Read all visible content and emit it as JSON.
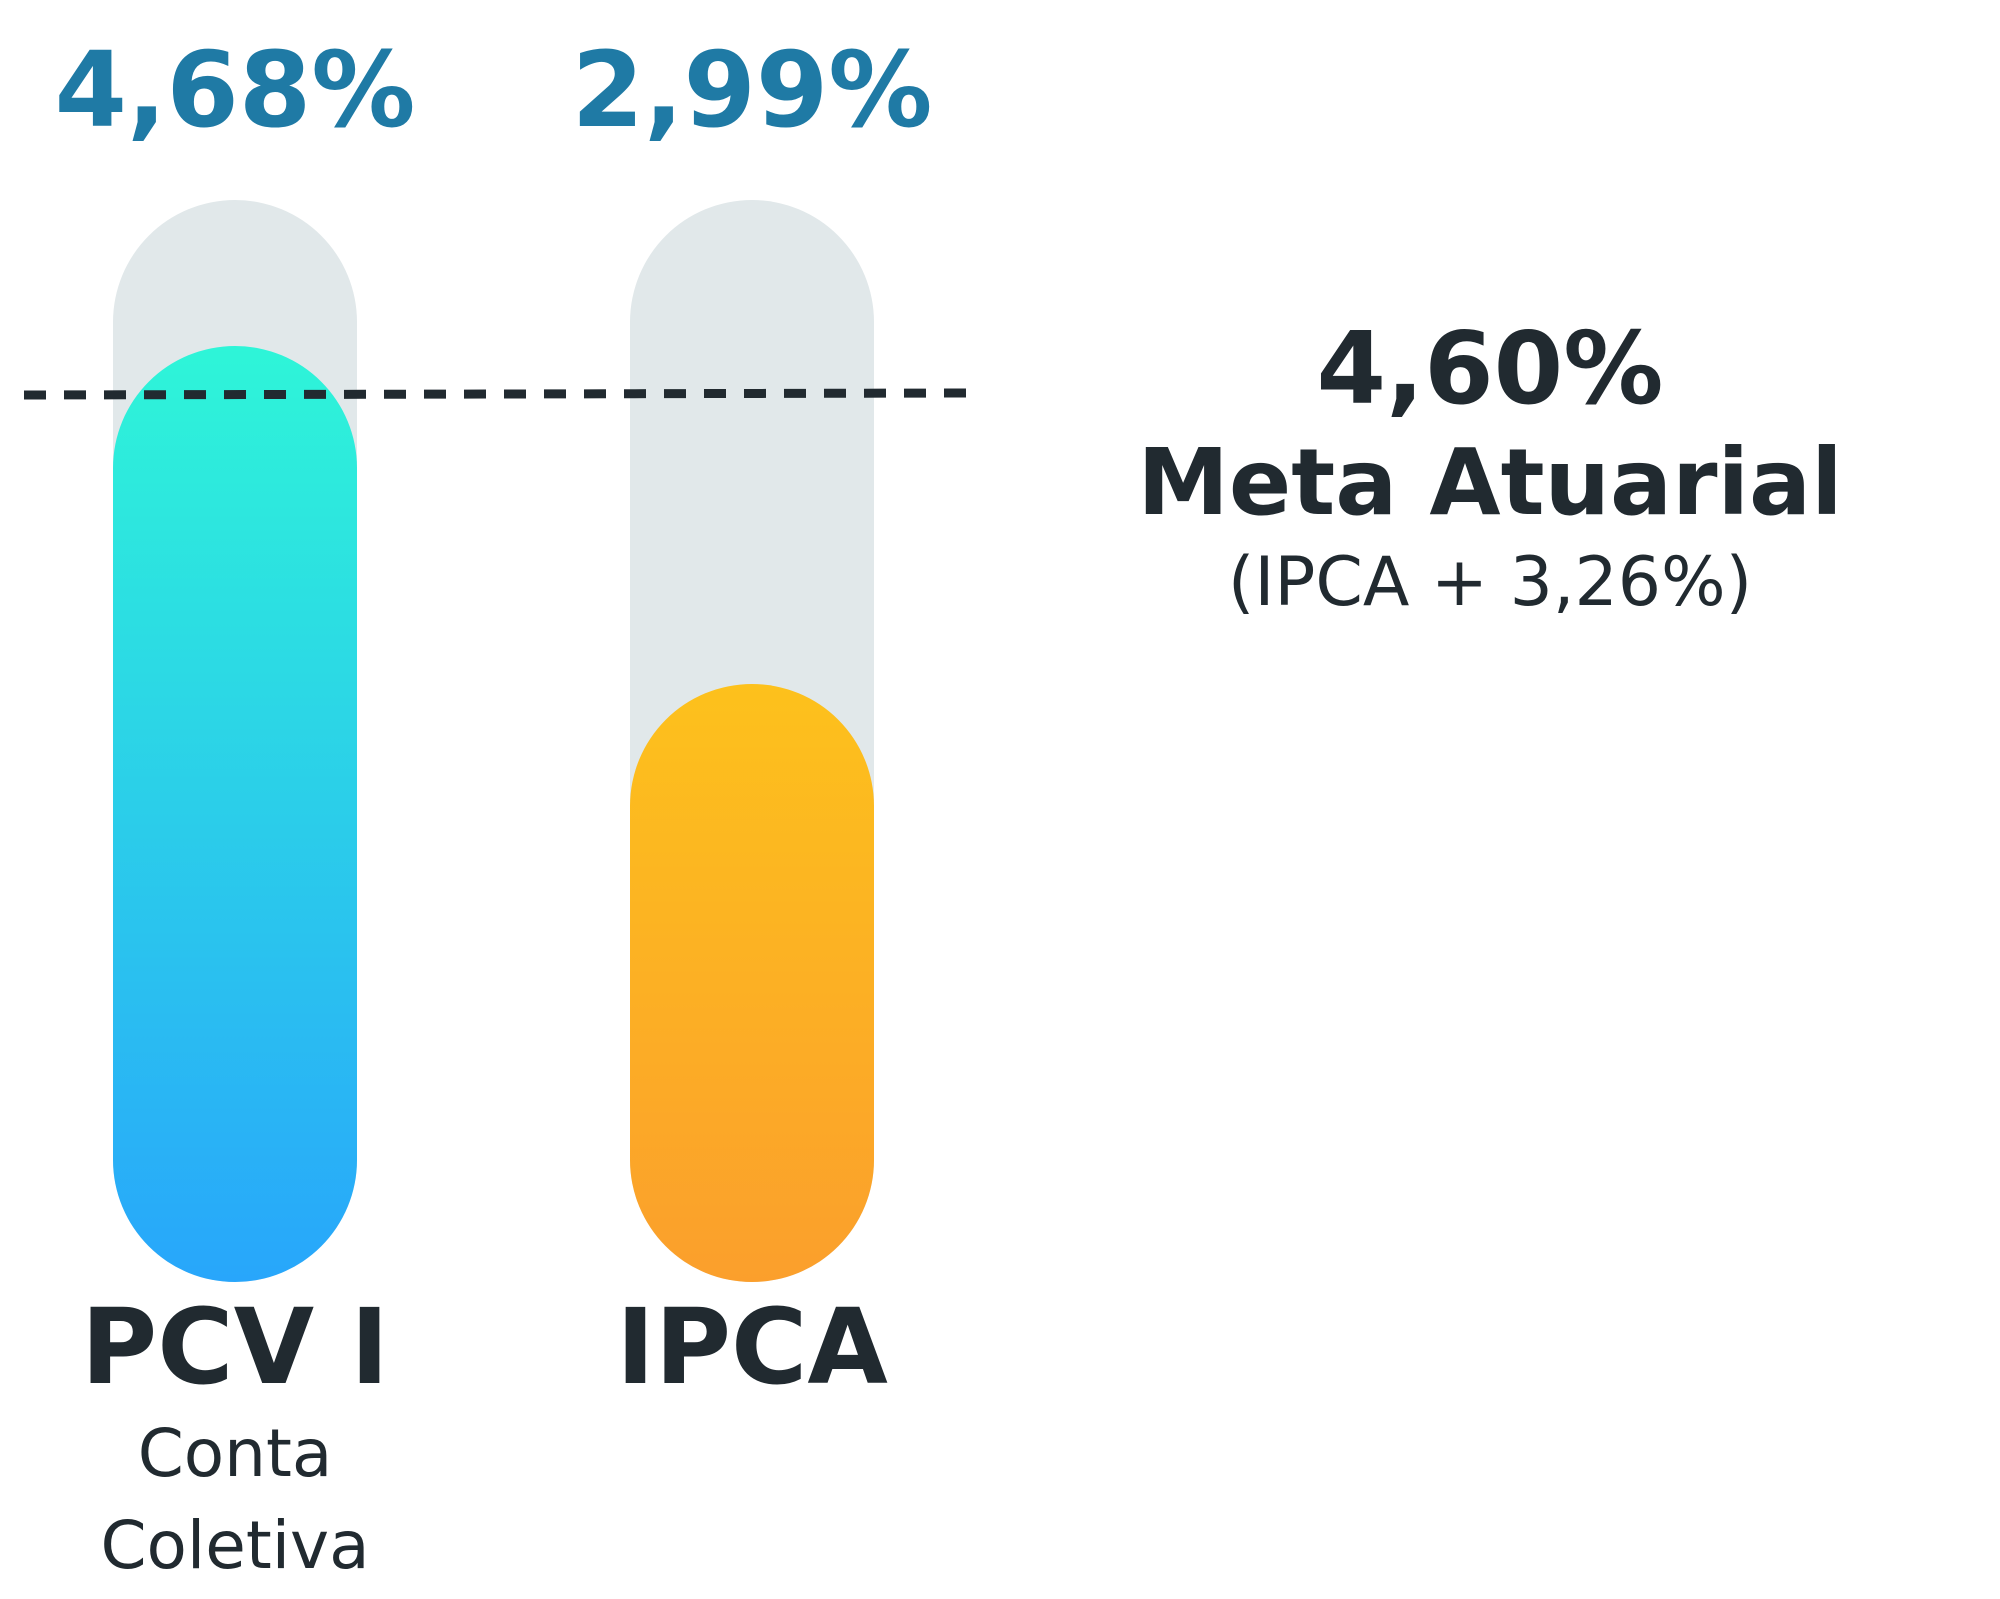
{
  "chart_data": {
    "type": "bar",
    "categories": [
      "PCV I",
      "IPCA"
    ],
    "category_subtitles": [
      "Conta Coletiva",
      ""
    ],
    "values": [
      4.68,
      2.99
    ],
    "value_labels": [
      "4,68%",
      "2,99%"
    ],
    "ylim": [
      0,
      5.4
    ],
    "grid": false,
    "reference_line": {
      "value": 4.6,
      "value_label": "4,60%",
      "label": "Meta Atuarial",
      "formula": "(IPCA + 3,26%)",
      "style": "dashed"
    }
  },
  "colors": {
    "value_text": "#1f7aa5",
    "dark_text": "#212a30",
    "track": "#e1e8ea",
    "pcv_top": "#2ef5d8",
    "pcv_bottom": "#28a6fb",
    "ipca_top": "#fdc11c",
    "ipca_bottom": "#fb9f2c"
  }
}
